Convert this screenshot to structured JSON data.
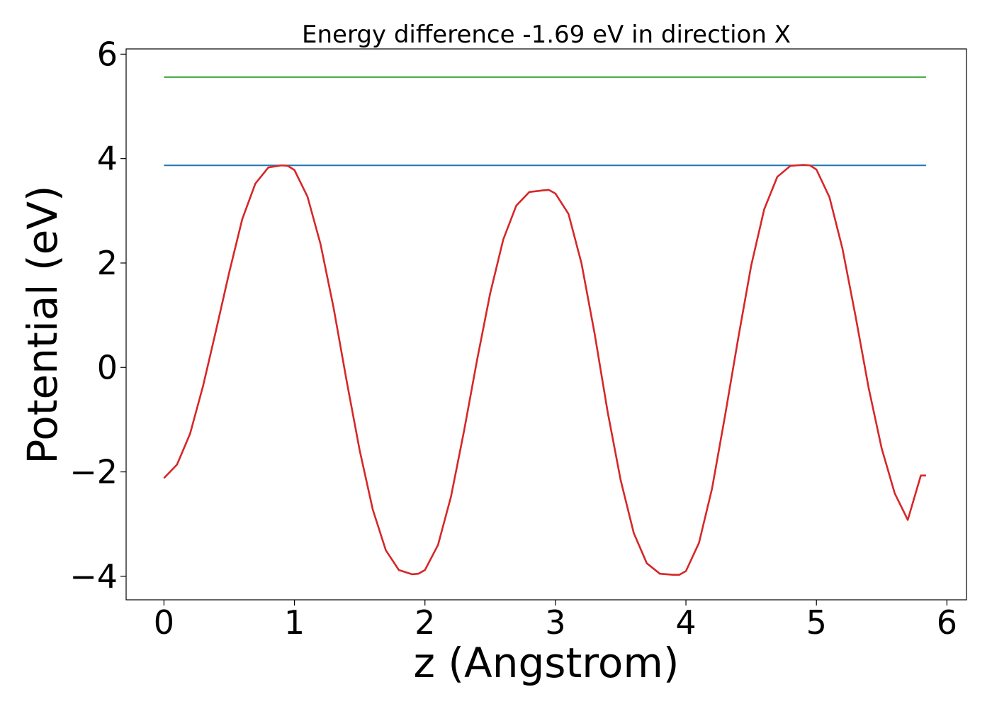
{
  "chart_data": {
    "type": "line",
    "title": "Energy difference -1.69 eV in direction X",
    "xlabel": "z (Angstrom)",
    "ylabel": "Potential (eV)",
    "xlim": [
      -0.29,
      6.15
    ],
    "ylim": [
      -4.45,
      6.1
    ],
    "xticks": [
      0,
      1,
      2,
      3,
      4,
      5,
      6
    ],
    "xtick_labels": [
      "0",
      "1",
      "2",
      "3",
      "4",
      "5",
      "6"
    ],
    "yticks": [
      -4,
      -2,
      0,
      2,
      4,
      6
    ],
    "ytick_labels": [
      "−4",
      "−2",
      "0",
      "2",
      "4",
      "6"
    ],
    "grid": false,
    "series": [
      {
        "color": "#d62728",
        "x": [
          0.0,
          0.1,
          0.2,
          0.3,
          0.4,
          0.5,
          0.6,
          0.7,
          0.8,
          0.9,
          0.95,
          1.0,
          1.1,
          1.2,
          1.3,
          1.4,
          1.5,
          1.6,
          1.7,
          1.8,
          1.9,
          1.95,
          2.0,
          2.1,
          2.2,
          2.3,
          2.4,
          2.5,
          2.6,
          2.7,
          2.8,
          2.9,
          2.95,
          3.0,
          3.1,
          3.2,
          3.3,
          3.4,
          3.5,
          3.6,
          3.7,
          3.8,
          3.9,
          3.95,
          4.0,
          4.1,
          4.2,
          4.3,
          4.4,
          4.5,
          4.6,
          4.7,
          4.8,
          4.9,
          4.95,
          5.0,
          5.1,
          5.2,
          5.3,
          5.4,
          5.5,
          5.6,
          5.7,
          5.8,
          5.84
        ],
        "y": [
          -2.12,
          -1.86,
          -1.27,
          -0.35,
          0.72,
          1.82,
          2.84,
          3.52,
          3.83,
          3.87,
          3.86,
          3.78,
          3.27,
          2.36,
          1.14,
          -0.26,
          -1.59,
          -2.72,
          -3.5,
          -3.88,
          -3.96,
          -3.95,
          -3.88,
          -3.4,
          -2.47,
          -1.21,
          0.15,
          1.42,
          2.45,
          3.1,
          3.36,
          3.39,
          3.4,
          3.33,
          2.94,
          1.99,
          0.65,
          -0.85,
          -2.16,
          -3.17,
          -3.75,
          -3.95,
          -3.97,
          -3.97,
          -3.9,
          -3.36,
          -2.32,
          -0.92,
          0.55,
          1.95,
          3.03,
          3.65,
          3.86,
          3.88,
          3.87,
          3.79,
          3.26,
          2.27,
          0.98,
          -0.39,
          -1.55,
          -2.41,
          -2.92,
          -2.07,
          -2.07
        ]
      },
      {
        "color": "#1f77b4",
        "x": [
          0.0,
          5.84
        ],
        "y": [
          3.87,
          3.87
        ]
      },
      {
        "color": "#2ca02c",
        "x": [
          0.0,
          5.84
        ],
        "y": [
          5.56,
          5.56
        ]
      }
    ]
  }
}
